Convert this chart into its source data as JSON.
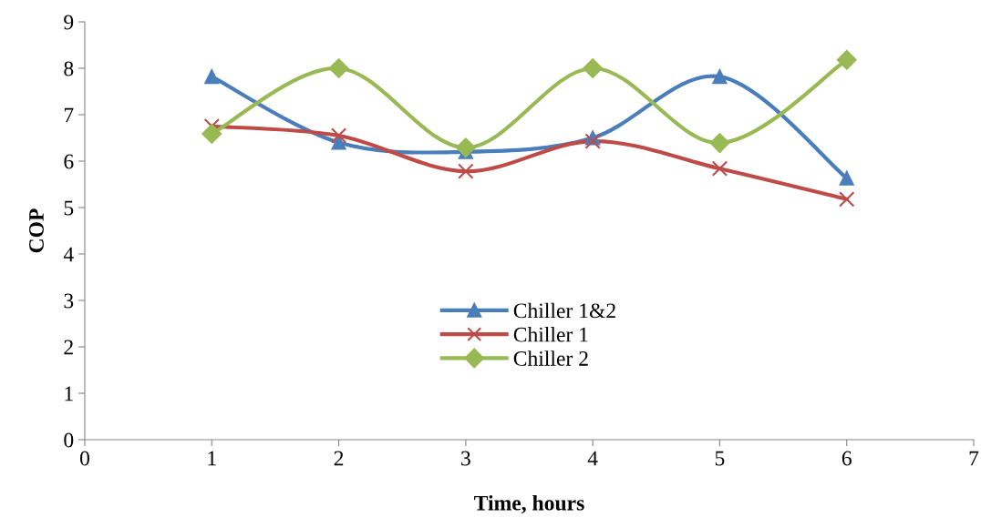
{
  "chart_data": {
    "type": "line",
    "xlabel": "Time, hours",
    "ylabel": "COP",
    "x": [
      1,
      2,
      3,
      4,
      5,
      6
    ],
    "series": [
      {
        "name": "Chiller 1&2",
        "color": "#4a7ebb",
        "values": [
          7.82,
          6.4,
          6.2,
          6.5,
          7.82,
          5.63
        ],
        "marker": "triangle"
      },
      {
        "name": "Chiller 1",
        "color": "#be4b48",
        "values": [
          6.75,
          6.55,
          5.78,
          6.43,
          5.84,
          5.18
        ],
        "marker": "cross"
      },
      {
        "name": "Chiller 2",
        "color": "#98b954",
        "values": [
          6.59,
          8.0,
          6.29,
          8.0,
          6.39,
          8.18
        ],
        "marker": "diamond"
      }
    ],
    "xlim": [
      0,
      7
    ],
    "xticks": [
      0,
      1,
      2,
      3,
      4,
      5,
      6,
      7
    ],
    "ylim": [
      0,
      9
    ],
    "yticks": [
      0,
      1,
      2,
      3,
      4,
      5,
      6,
      7,
      8,
      9
    ],
    "grid": false,
    "legend": "bottom",
    "line_style": "solid"
  }
}
